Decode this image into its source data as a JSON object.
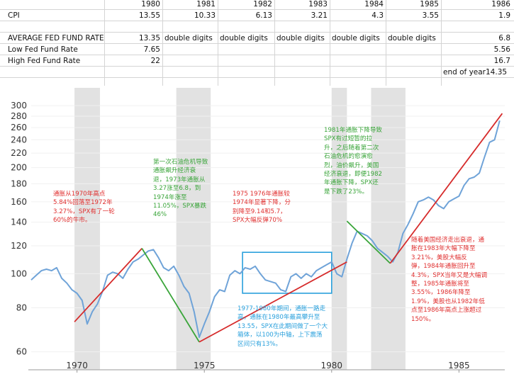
{
  "table": {
    "years": [
      "1980",
      "1981",
      "1982",
      "1983",
      "1984",
      "1985",
      "1986"
    ],
    "rows": [
      {
        "label": "CPI",
        "values": [
          "13.55",
          "10.33",
          "6.13",
          "3.21",
          "4.3",
          "3.55",
          "1.9"
        ]
      },
      {
        "label": "",
        "values": [
          "",
          "",
          "",
          "",
          "",
          "",
          ""
        ]
      },
      {
        "label": "AVERAGE FED FUND RATE",
        "values": [
          "13.35",
          "double digits",
          "double digits",
          "double digits",
          "double digits",
          "double digits",
          "6.8"
        ]
      },
      {
        "label": "Low Fed Fund Rate",
        "values": [
          "7.65",
          "",
          "",
          "",
          "",
          "",
          "5.56"
        ]
      },
      {
        "label": "High Fed Fund Rate",
        "values": [
          "22",
          "",
          "",
          "",
          "",
          "",
          "16.7"
        ]
      },
      {
        "label": "",
        "values": [
          "",
          "",
          "",
          "",
          "",
          "",
          "end of year14.35"
        ]
      }
    ]
  },
  "chart_data": {
    "type": "line",
    "title": "",
    "xlabel": "",
    "ylabel": "",
    "y_scale": "log",
    "ylim": [
      58,
      310
    ],
    "xlim": [
      1968.2,
      1986.8
    ],
    "y_ticks": [
      "60",
      "80",
      "100",
      "120",
      "140",
      "160",
      "180",
      "200",
      "220",
      "240",
      "260",
      "280",
      "300"
    ],
    "x_ticks": [
      "1970",
      "1975",
      "1980",
      "1985"
    ],
    "recessions": [
      [
        1969.9,
        1970.9
      ],
      [
        1973.9,
        1975.25
      ],
      [
        1980.0,
        1980.6
      ],
      [
        1981.55,
        1982.9
      ]
    ],
    "series": [
      {
        "name": "SPX",
        "color": "#6fa3d8",
        "x": [
          1968.2,
          1968.4,
          1968.6,
          1968.8,
          1969.0,
          1969.2,
          1969.4,
          1969.6,
          1969.8,
          1970.0,
          1970.2,
          1970.4,
          1970.6,
          1970.8,
          1971.0,
          1971.2,
          1971.4,
          1971.6,
          1971.8,
          1972.0,
          1972.2,
          1972.4,
          1972.6,
          1972.8,
          1973.0,
          1973.2,
          1973.4,
          1973.6,
          1973.8,
          1974.0,
          1974.2,
          1974.4,
          1974.6,
          1974.8,
          1975.0,
          1975.2,
          1975.4,
          1975.6,
          1975.8,
          1976.0,
          1976.2,
          1976.4,
          1976.6,
          1976.8,
          1977.0,
          1977.2,
          1977.4,
          1977.6,
          1977.8,
          1978.0,
          1978.2,
          1978.4,
          1978.6,
          1978.8,
          1979.0,
          1979.2,
          1979.4,
          1979.6,
          1979.8,
          1980.0,
          1980.2,
          1980.4,
          1980.6,
          1980.8,
          1981.0,
          1981.2,
          1981.4,
          1981.6,
          1981.8,
          1982.0,
          1982.2,
          1982.4,
          1982.6,
          1982.8,
          1983.0,
          1983.2,
          1983.4,
          1983.6,
          1983.8,
          1984.0,
          1984.2,
          1984.4,
          1984.6,
          1984.8,
          1985.0,
          1985.2,
          1985.4,
          1985.6,
          1985.8,
          1986.0,
          1986.2,
          1986.4,
          1986.6
        ],
        "values": [
          96,
          99,
          102,
          103,
          102,
          104,
          97,
          94,
          90,
          88,
          84,
          72,
          78,
          82,
          89,
          99,
          101,
          100,
          97,
          103,
          108,
          110,
          113,
          116,
          117,
          111,
          104,
          102,
          105,
          99,
          92,
          88,
          78,
          66,
          72,
          78,
          86,
          90,
          89,
          99,
          102,
          100,
          104,
          103,
          105,
          100,
          96,
          95,
          94,
          90,
          89,
          98,
          100,
          97,
          100,
          98,
          102,
          104,
          106,
          108,
          100,
          98,
          110,
          122,
          132,
          130,
          128,
          124,
          118,
          115,
          112,
          108,
          115,
          130,
          138,
          148,
          160,
          162,
          165,
          162,
          156,
          153,
          160,
          163,
          166,
          178,
          186,
          188,
          193,
          214,
          236,
          240,
          272
        ]
      }
    ],
    "trend_lines": [
      {
        "name": "rise-1970-1972",
        "color": "#d62b2b",
        "points": [
          [
            1969.9,
            73
          ],
          [
            1972.55,
            118
          ]
        ]
      },
      {
        "name": "fall-1973-1974",
        "color": "#3aa53a",
        "points": [
          [
            1972.55,
            118
          ],
          [
            1974.8,
            64
          ]
        ]
      },
      {
        "name": "rise-1974-1980",
        "color": "#d62b2b",
        "points": [
          [
            1974.8,
            64
          ],
          [
            1980.6,
            108
          ]
        ]
      },
      {
        "name": "fall-1980-1982",
        "color": "#3aa53a",
        "points": [
          [
            1980.6,
            141
          ],
          [
            1982.3,
            107
          ]
        ]
      },
      {
        "name": "rise-1982-1986",
        "color": "#d62b2b",
        "points": [
          [
            1982.3,
            107
          ],
          [
            1986.7,
            285
          ]
        ]
      }
    ],
    "box": {
      "x": [
        1976.5,
        1980.0
      ],
      "y": [
        88,
        115
      ],
      "color": "#29a0dc"
    },
    "annotations": [
      {
        "name": "note-1970-1972",
        "color": "#e03030",
        "text": "通胀从1970年高点\n5.84%回落至1972年\n3.27%，SPX有了一轮\n60%的牛市。"
      },
      {
        "name": "note-oil-crisis-1",
        "color": "#3aa53a",
        "text": "第一次石油危机导致\n通胀飙升经济衰\n退，1973年通胀从\n3.27涨至6.8，到\n1974年涨至\n11.05%，SPX暴跌\n46%"
      },
      {
        "name": "note-1975-1976",
        "color": "#e03030",
        "text": "1975 1976年通胀较\n1974年显著下降，分\n别降至9.14和5.7，\nSPX大幅反弹70%"
      },
      {
        "name": "note-1977-1980",
        "color": "#29a0dc",
        "text": "1977-1980年期间，通胀一路走\n高，通胀在1980年最高攀升至\n13.55，SPX在此期间做了一个大\n箱体，以100为中轴，上下震荡\n区间只有13%。"
      },
      {
        "name": "note-1981-1982",
        "color": "#3aa53a",
        "text": "1981年通胀下降导致\nSPX有过短暂的拉\n升，之后随着第二次\n石油危机的愈演愈\n烈，油价飙升，美国\n经济衰退，即便1982\n年通胀下降，SPX还\n是下跌了23%。"
      },
      {
        "name": "note-1983-1986",
        "color": "#e03030",
        "text": "随着美国经济走出衰退，通\n胀在1983年大幅下降至\n3.21%，美股大幅反\n弹，1984年通胀回升至\n4.3%，SPX当年又是大幅调\n整，1985年通胀将至\n3.55%，1986年降至\n1.9%，美股也从1982年低\n点至1986年高点上涨超过\n150%。"
      }
    ]
  }
}
